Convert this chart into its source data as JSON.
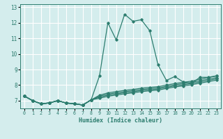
{
  "xlabel": "Humidex (Indice chaleur)",
  "ylabel": "",
  "xlim": [
    -0.5,
    23.5
  ],
  "ylim": [
    6.5,
    13.2
  ],
  "yticks": [
    7,
    8,
    9,
    10,
    11,
    12,
    13
  ],
  "xticks": [
    0,
    1,
    2,
    3,
    4,
    5,
    6,
    7,
    8,
    9,
    10,
    11,
    12,
    13,
    14,
    15,
    16,
    17,
    18,
    19,
    20,
    21,
    22,
    23
  ],
  "bg_color": "#d4eded",
  "grid_color": "#ffffff",
  "line_color": "#2d7d6f",
  "lines": [
    [
      7.3,
      7.0,
      6.8,
      6.85,
      7.0,
      6.85,
      6.8,
      6.72,
      7.05,
      8.6,
      12.0,
      10.9,
      12.55,
      12.1,
      12.2,
      11.5,
      9.3,
      8.3,
      8.55,
      8.2,
      8.1,
      8.5,
      8.5,
      8.6
    ],
    [
      7.3,
      7.0,
      6.8,
      6.85,
      7.0,
      6.85,
      6.8,
      6.72,
      7.05,
      7.35,
      7.5,
      7.58,
      7.66,
      7.72,
      7.8,
      7.85,
      7.9,
      8.0,
      8.1,
      8.18,
      8.25,
      8.38,
      8.48,
      8.58
    ],
    [
      7.3,
      7.0,
      6.8,
      6.85,
      7.0,
      6.85,
      6.8,
      6.72,
      7.05,
      7.28,
      7.42,
      7.5,
      7.58,
      7.64,
      7.72,
      7.77,
      7.82,
      7.92,
      8.02,
      8.1,
      8.17,
      8.28,
      8.38,
      8.48
    ],
    [
      7.3,
      7.0,
      6.8,
      6.85,
      7.0,
      6.85,
      6.8,
      6.72,
      7.05,
      7.22,
      7.35,
      7.43,
      7.51,
      7.57,
      7.65,
      7.7,
      7.75,
      7.85,
      7.95,
      8.02,
      8.1,
      8.2,
      8.3,
      8.4
    ],
    [
      7.3,
      7.0,
      6.8,
      6.85,
      7.0,
      6.85,
      6.8,
      6.72,
      7.05,
      7.15,
      7.28,
      7.36,
      7.44,
      7.5,
      7.58,
      7.63,
      7.68,
      7.78,
      7.88,
      7.95,
      8.02,
      8.12,
      8.22,
      8.32
    ]
  ]
}
